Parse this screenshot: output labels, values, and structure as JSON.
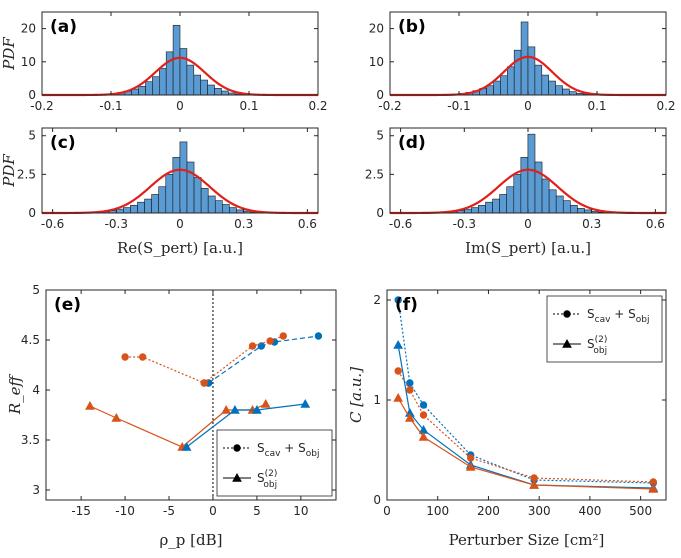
{
  "chart_data": [
    {
      "id": "a",
      "type": "bar",
      "panel_label": "(a)",
      "ylabel": "PDF",
      "xlabel": "",
      "xlim": [
        -0.2,
        0.2
      ],
      "ylim": [
        0,
        25
      ],
      "xticks": [
        -0.2,
        -0.1,
        0,
        0.1,
        0.2
      ],
      "xtick_labels": [
        "-0.2",
        "-0.1",
        "0",
        "0.1",
        "0.2"
      ],
      "yticks": [
        0,
        10,
        20
      ],
      "ytick_labels": [
        "0",
        "10",
        "20"
      ],
      "bin_start": -0.12,
      "bin_width": 0.01,
      "values": [
        0.2,
        0.3,
        0.5,
        0.8,
        1.2,
        1.8,
        2.6,
        4.0,
        5.5,
        8.0,
        13.0,
        21.0,
        14.0,
        9.0,
        6.0,
        4.5,
        3.0,
        2.0,
        1.2,
        0.6,
        0.3,
        0.2
      ],
      "fit": {
        "mu": 0.0,
        "peak": 11.2,
        "sigma": 0.036
      }
    },
    {
      "id": "b",
      "type": "bar",
      "panel_label": "(b)",
      "ylabel": "",
      "xlabel": "",
      "xlim": [
        -0.2,
        0.2
      ],
      "ylim": [
        0,
        25
      ],
      "xticks": [
        -0.2,
        -0.1,
        0,
        0.1,
        0.2
      ],
      "xtick_labels": [
        "-0.2",
        "-0.1",
        "0",
        "0.1",
        "0.2"
      ],
      "yticks": [
        0,
        10,
        20
      ],
      "ytick_labels": [
        "0",
        "10",
        "20"
      ],
      "bin_start": -0.12,
      "bin_width": 0.01,
      "values": [
        0.2,
        0.3,
        0.5,
        0.8,
        1.3,
        2.0,
        2.8,
        4.2,
        5.8,
        8.5,
        13.5,
        22.0,
        14.5,
        9.0,
        6.0,
        4.2,
        2.8,
        1.8,
        1.0,
        0.5,
        0.3,
        0.2
      ],
      "fit": {
        "mu": 0.0,
        "peak": 11.5,
        "sigma": 0.035
      }
    },
    {
      "id": "c",
      "type": "bar",
      "panel_label": "(c)",
      "ylabel": "PDF",
      "xlabel": "Re(S_pert) [a.u.]",
      "xlim": [
        -0.65,
        0.65
      ],
      "ylim": [
        0,
        5.5
      ],
      "xticks": [
        -0.6,
        -0.3,
        0,
        0.3,
        0.6
      ],
      "xtick_labels": [
        "-0.6",
        "-0.3",
        "0",
        "0.3",
        "0.6"
      ],
      "yticks": [
        0,
        2.5,
        5
      ],
      "ytick_labels": [
        "0",
        "2.5",
        "5"
      ],
      "bin_start": -0.4,
      "bin_width": 0.0333,
      "values": [
        0.05,
        0.08,
        0.15,
        0.25,
        0.35,
        0.5,
        0.7,
        0.9,
        1.2,
        1.7,
        2.5,
        3.6,
        4.6,
        3.3,
        2.3,
        1.6,
        1.1,
        0.8,
        0.55,
        0.35,
        0.2,
        0.12,
        0.06,
        0.03
      ],
      "fit": {
        "mu": 0.0,
        "peak": 2.8,
        "sigma": 0.14
      }
    },
    {
      "id": "d",
      "type": "bar",
      "panel_label": "(d)",
      "ylabel": "",
      "xlabel": "Im(S_pert) [a.u.]",
      "xlim": [
        -0.65,
        0.65
      ],
      "ylim": [
        0,
        5.5
      ],
      "xticks": [
        -0.6,
        -0.3,
        0,
        0.3,
        0.6
      ],
      "xtick_labels": [
        "-0.6",
        "-0.3",
        "0",
        "0.3",
        "0.6"
      ],
      "yticks": [
        0,
        2.5,
        5
      ],
      "ytick_labels": [
        "0",
        "2.5",
        "5"
      ],
      "bin_start": -0.4,
      "bin_width": 0.0333,
      "values": [
        0.05,
        0.08,
        0.15,
        0.25,
        0.35,
        0.5,
        0.7,
        0.9,
        1.2,
        1.7,
        2.5,
        3.6,
        5.1,
        3.3,
        2.2,
        1.5,
        1.1,
        0.8,
        0.5,
        0.3,
        0.2,
        0.1,
        0.05,
        0.03
      ],
      "fit": {
        "mu": 0.0,
        "peak": 2.8,
        "sigma": 0.14
      }
    },
    {
      "id": "e",
      "type": "line",
      "panel_label": "(e)",
      "ylabel": "R_eff",
      "xlabel": "ρ_p [dB]",
      "xlim": [
        -19,
        14
      ],
      "ylim": [
        2.9,
        5
      ],
      "xticks": [
        -15,
        -10,
        -5,
        0,
        5,
        10
      ],
      "xtick_labels": [
        "-15",
        "-10",
        "-5",
        "0",
        "5",
        "10"
      ],
      "yticks": [
        3,
        3.5,
        4,
        4.5,
        5
      ],
      "ytick_labels": [
        "3",
        "3.5",
        "4",
        "4.5",
        "5"
      ],
      "vline": 0,
      "series": [
        {
          "name": "cav_obj_orange_neg",
          "legend": "",
          "color": "#d95319",
          "style": "dotted",
          "marker": "circle",
          "x": [
            -10,
            -8,
            -1
          ],
          "y": [
            4.33,
            4.33,
            4.07
          ]
        },
        {
          "name": "cav_obj_blue_neg",
          "legend": "",
          "color": "#0072bd",
          "style": "dotted",
          "marker": "circle",
          "x": [
            -0.5
          ],
          "y": [
            4.07
          ]
        },
        {
          "name": "cav_obj_blue_pos",
          "legend": "",
          "color": "#0072bd",
          "style": "dashed",
          "marker": "circle",
          "x": [
            -0.5,
            5.5,
            7,
            12
          ],
          "y": [
            4.07,
            4.44,
            4.48,
            4.54
          ]
        },
        {
          "name": "cav_obj_orange_pos",
          "legend": "",
          "color": "#d95319",
          "style": "dotted",
          "marker": "circle",
          "x": [
            -1,
            4.5,
            6.5,
            8
          ],
          "y": [
            4.07,
            4.44,
            4.49,
            4.54
          ]
        },
        {
          "name": "obj2_orange",
          "legend": "",
          "color": "#d95319",
          "style": "solid",
          "marker": "triangle",
          "x": [
            -14,
            -11,
            -3.5,
            1.5,
            4.5,
            6
          ],
          "y": [
            3.84,
            3.72,
            3.43,
            3.8,
            3.8,
            3.86
          ]
        },
        {
          "name": "obj2_blue",
          "legend": "",
          "color": "#0072bd",
          "style": "solid",
          "marker": "triangle",
          "x": [
            -3,
            2.5,
            5,
            10.5
          ],
          "y": [
            3.43,
            3.8,
            3.8,
            3.86
          ]
        }
      ],
      "legend": [
        {
          "label": "S",
          "sub": "cav",
          "label2": " + S",
          "sub2": "obj",
          "marker": "circle",
          "style": "dotted"
        },
        {
          "label": "S",
          "sub": "obj",
          "sup": "(2)",
          "marker": "triangle",
          "style": "solid"
        }
      ]
    },
    {
      "id": "f",
      "type": "line",
      "panel_label": "(f)",
      "ylabel": "C [a.u.]",
      "xlabel": "Perturber Size [cm²]",
      "xlim": [
        0,
        550
      ],
      "ylim": [
        0,
        2.1
      ],
      "xticks": [
        0,
        100,
        200,
        300,
        400,
        500
      ],
      "xtick_labels": [
        "0",
        "100",
        "200",
        "300",
        "400",
        "500"
      ],
      "yticks": [
        0,
        1,
        2
      ],
      "ytick_labels": [
        "0",
        "1",
        "2"
      ],
      "series": [
        {
          "name": "blue_circle",
          "color": "#0072bd",
          "style": "dotted",
          "marker": "circle",
          "x": [
            22,
            45,
            72,
            165,
            290,
            525
          ],
          "y": [
            2.0,
            1.17,
            0.95,
            0.45,
            0.2,
            0.17
          ]
        },
        {
          "name": "orange_circle",
          "color": "#d95319",
          "style": "dotted",
          "marker": "circle",
          "x": [
            22,
            45,
            72,
            165,
            290,
            525
          ],
          "y": [
            1.29,
            1.1,
            0.85,
            0.42,
            0.22,
            0.18
          ]
        },
        {
          "name": "blue_tri",
          "color": "#0072bd",
          "style": "solid",
          "marker": "triangle",
          "x": [
            22,
            45,
            72,
            165,
            290,
            525
          ],
          "y": [
            1.55,
            0.87,
            0.7,
            0.35,
            0.15,
            0.12
          ]
        },
        {
          "name": "orange_tri",
          "color": "#d95319",
          "style": "solid",
          "marker": "triangle",
          "x": [
            22,
            45,
            72,
            165,
            290,
            525
          ],
          "y": [
            1.02,
            0.82,
            0.63,
            0.33,
            0.15,
            0.11
          ]
        }
      ],
      "legend": [
        {
          "label": "S",
          "sub": "cav",
          "label2": " + S",
          "sub2": "obj",
          "marker": "circle",
          "style": "dotted"
        },
        {
          "label": "S",
          "sub": "obj",
          "sup": "(2)",
          "marker": "triangle",
          "style": "solid"
        }
      ]
    }
  ],
  "colors": {
    "bar_fill": "#5a9bd4",
    "bar_edge": "#1a1a1a",
    "fit": "#e0201b",
    "blue": "#0072bd",
    "orange": "#d95319"
  }
}
